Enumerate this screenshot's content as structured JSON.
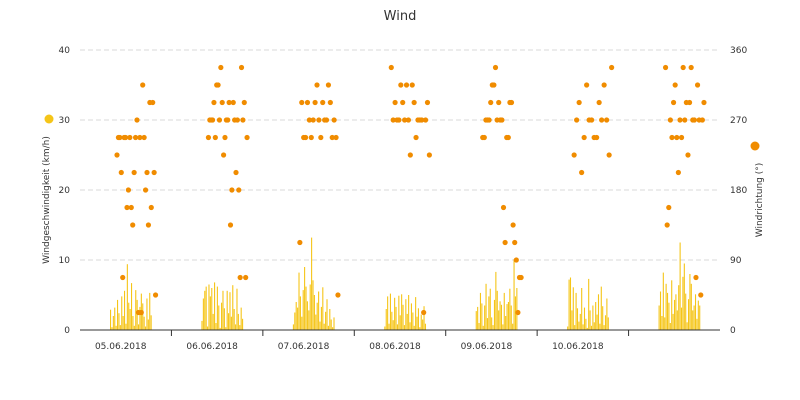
{
  "chart_data": {
    "type": "bar+scatter",
    "title": "Wind",
    "ylabel_left": "Windgeschwindigkeit (km/h)",
    "ylabel_right": "Windrichtung (°)",
    "ylim_left": [
      0,
      40
    ],
    "ylim_right": [
      0,
      360
    ],
    "yticks_left": [
      0,
      10,
      20,
      30,
      40
    ],
    "yticks_right": [
      0,
      90,
      180,
      270,
      360
    ],
    "grid": "horizontal dashed",
    "colors": {
      "speed": "#f5c518",
      "direction": "#f08c00"
    },
    "x_categories": [
      "05.06.2018",
      "06.06.2018",
      "07.06.2018",
      "08.06.2018",
      "09.06.2018",
      "10.06.2018",
      ""
    ],
    "series": [
      {
        "type": "bar",
        "axis": "left",
        "days": [
          [
            2.9,
            0.4,
            2.0,
            3.2,
            0.6,
            4.3,
            2.4,
            0.7,
            4.8,
            2.0,
            5.6,
            0.9,
            9.4,
            3.9,
            3.0,
            6.7,
            2.0,
            0.6,
            5.7,
            4.3,
            0.8,
            3.3,
            5.2,
            3.8,
            1.9,
            0.5,
            4.5,
            1.5,
            5.3,
            2.1
          ],
          [
            1.3,
            4.5,
            5.6,
            6.2,
            0.5,
            6.5,
            4.8,
            6.0,
            2.3,
            6.8,
            1.0,
            6.2,
            3.5,
            0.3,
            3.9,
            5.6,
            3.1,
            0.4,
            5.6,
            2.4,
            5.4,
            1.9,
            6.4,
            3.0,
            0.8,
            5.9,
            2.3,
            0.7,
            3.2,
            1.6
          ],
          [
            0.8,
            2.5,
            4.0,
            3.2,
            8.2,
            4.8,
            1.9,
            5.7,
            9.0,
            6.2,
            4.1,
            2.8,
            6.5,
            13.2,
            7.1,
            5.0,
            2.2,
            3.9,
            5.5,
            1.2,
            3.3,
            6.1,
            0.9,
            2.6,
            4.4,
            0.6,
            3.0,
            1.5,
            0.4,
            1.8
          ],
          [
            0.5,
            3.0,
            4.8,
            0.9,
            5.2,
            2.6,
            1.4,
            4.6,
            3.3,
            0.8,
            4.9,
            2.1,
            5.1,
            3.6,
            0.7,
            4.4,
            2.3,
            5.0,
            1.1,
            3.8,
            2.5,
            0.6,
            4.7,
            1.9,
            3.1,
            0.4,
            2.2,
            1.5,
            3.4,
            0.9
          ],
          [
            2.7,
            3.3,
            1.0,
            5.3,
            3.8,
            0.6,
            3.5,
            6.6,
            1.7,
            4.8,
            5.9,
            1.8,
            0.7,
            4.3,
            8.3,
            5.6,
            2.8,
            4.1,
            3.6,
            0.8,
            5.3,
            2.0,
            3.7,
            4.0,
            5.9,
            3.5,
            0.9,
            10.1,
            4.8,
            6.0
          ],
          [
            0.5,
            7.2,
            7.5,
            2.8,
            6.1,
            0.7,
            5.3,
            3.1,
            1.2,
            2.3,
            6.0,
            0.8,
            3.2,
            1.6,
            0.3,
            7.3,
            2.8,
            0.6,
            3.5,
            1.1,
            4.0,
            2.2,
            5.1,
            0.9,
            6.2,
            3.4,
            0.7,
            2.1,
            4.5,
            1.8
          ],
          [
            3.5,
            5.5,
            2.0,
            8.2,
            1.8,
            6.6,
            5.3,
            3.9,
            1.0,
            7.1,
            2.3,
            4.3,
            5.1,
            2.8,
            6.4,
            12.5,
            3.2,
            7.6,
            9.5,
            5.2,
            1.1,
            4.4,
            8.0,
            6.6,
            2.8,
            3.5,
            5.1,
            1.6,
            4.2,
            3.5
          ]
        ]
      },
      {
        "type": "scatter",
        "axis": "right",
        "days": [
          [
            225,
            247.5,
            247.5,
            202.5,
            67.5,
            247.5,
            247.5,
            157.5,
            180,
            247.5,
            157.5,
            135,
            202.5,
            247.5,
            270,
            22.5,
            247.5,
            22.5,
            315,
            247.5,
            180,
            202.5,
            135,
            292.5,
            157.5,
            292.5,
            202.5,
            45
          ],
          [
            247.5,
            270,
            270,
            270,
            292.5,
            247.5,
            315,
            315,
            270,
            337.5,
            292.5,
            225,
            247.5,
            270,
            270,
            292.5,
            135,
            180,
            292.5,
            270,
            202.5,
            270,
            180,
            67.5,
            337.5,
            270,
            292.5,
            67.5,
            247.5
          ],
          [
            112.5,
            292.5,
            247.5,
            247.5,
            292.5,
            270,
            247.5,
            270,
            292.5,
            315,
            270,
            247.5,
            292.5,
            270,
            270,
            315,
            292.5,
            247.5,
            270,
            247.5,
            45
          ],
          [
            337.5,
            270,
            292.5,
            270,
            270,
            315,
            292.5,
            270,
            315,
            270,
            225,
            315,
            292.5,
            247.5,
            270,
            270,
            270,
            22.5,
            270,
            292.5,
            225
          ],
          [
            247.5,
            247.5,
            270,
            270,
            270,
            292.5,
            315,
            315,
            337.5,
            270,
            292.5,
            270,
            270,
            157.5,
            112.5,
            247.5,
            247.5,
            292.5,
            292.5,
            135,
            112.5,
            90,
            22.5,
            67.5,
            67.5
          ],
          [
            225,
            270,
            292.5,
            202.5,
            247.5,
            315,
            270,
            270,
            247.5,
            247.5,
            292.5,
            270,
            315,
            270,
            225,
            337.5
          ],
          [
            337.5,
            135,
            157.5,
            270,
            247.5,
            292.5,
            315,
            247.5,
            202.5,
            270,
            247.5,
            337.5,
            270,
            292.5,
            225,
            292.5,
            337.5,
            270,
            270,
            67.5,
            315,
            270,
            45,
            270,
            292.5
          ]
        ]
      }
    ]
  }
}
